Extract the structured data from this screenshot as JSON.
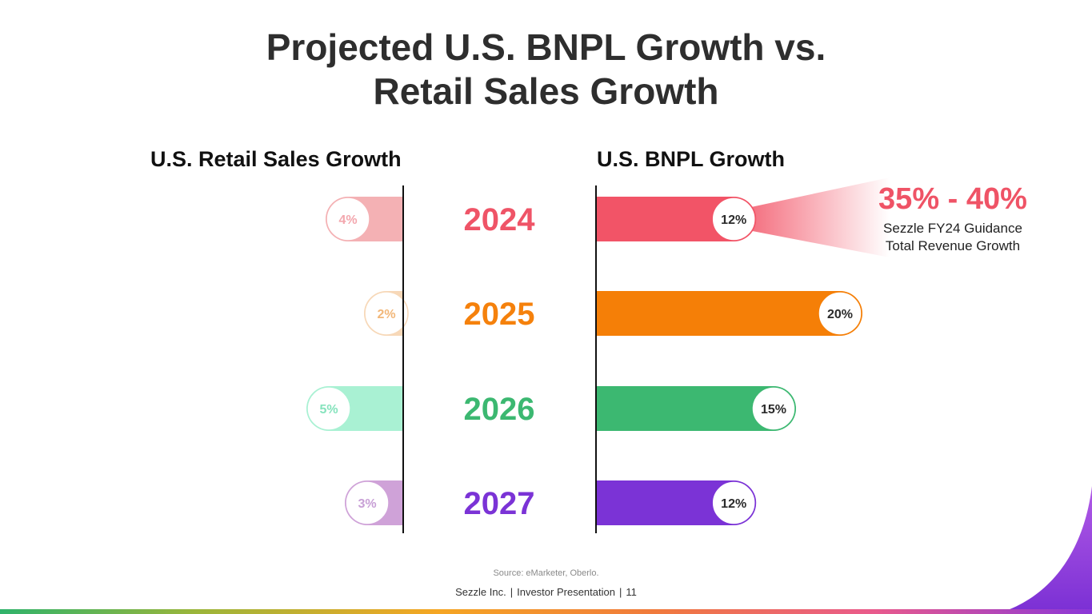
{
  "title": {
    "line1": "Projected U.S. BNPL Growth vs.",
    "line2": "Retail Sales Growth"
  },
  "left_heading": "U.S. Retail Sales Growth",
  "right_heading": "U.S. BNPL Growth",
  "callout": {
    "value": "35% - 40%",
    "line1": "Sezzle FY24 Guidance",
    "line2": "Total Revenue Growth"
  },
  "source": "Source: eMarketer, Oberlo.",
  "footer": {
    "company": "Sezzle Inc.",
    "deck": "Investor Presentation",
    "page": "11"
  },
  "chart_data": {
    "type": "bar",
    "title": "Projected U.S. BNPL Growth vs. Retail Sales Growth",
    "categories": [
      "2024",
      "2025",
      "2026",
      "2027"
    ],
    "series": [
      {
        "name": "U.S. Retail Sales Growth",
        "values": [
          4,
          2,
          5,
          3
        ],
        "labels": [
          "4%",
          "2%",
          "5%",
          "3%"
        ],
        "colors": [
          "#f4b1b4",
          "#f7d8b8",
          "#a9f1d3",
          "#cfa2d8"
        ],
        "label_colors": [
          "#f3a7ae",
          "#f2b779",
          "#86e3bd",
          "#c8a0d6"
        ]
      },
      {
        "name": "U.S. BNPL Growth",
        "values": [
          12,
          20,
          15,
          12
        ],
        "labels": [
          "12%",
          "20%",
          "15%",
          "12%"
        ],
        "colors": [
          "#f25467",
          "#f57f07",
          "#3cb871",
          "#7b33d6"
        ]
      }
    ],
    "category_colors": [
      "#ef5467",
      "#f5810c",
      "#3cb871",
      "#7b33d6"
    ],
    "orientation": "diverging-horizontal"
  }
}
